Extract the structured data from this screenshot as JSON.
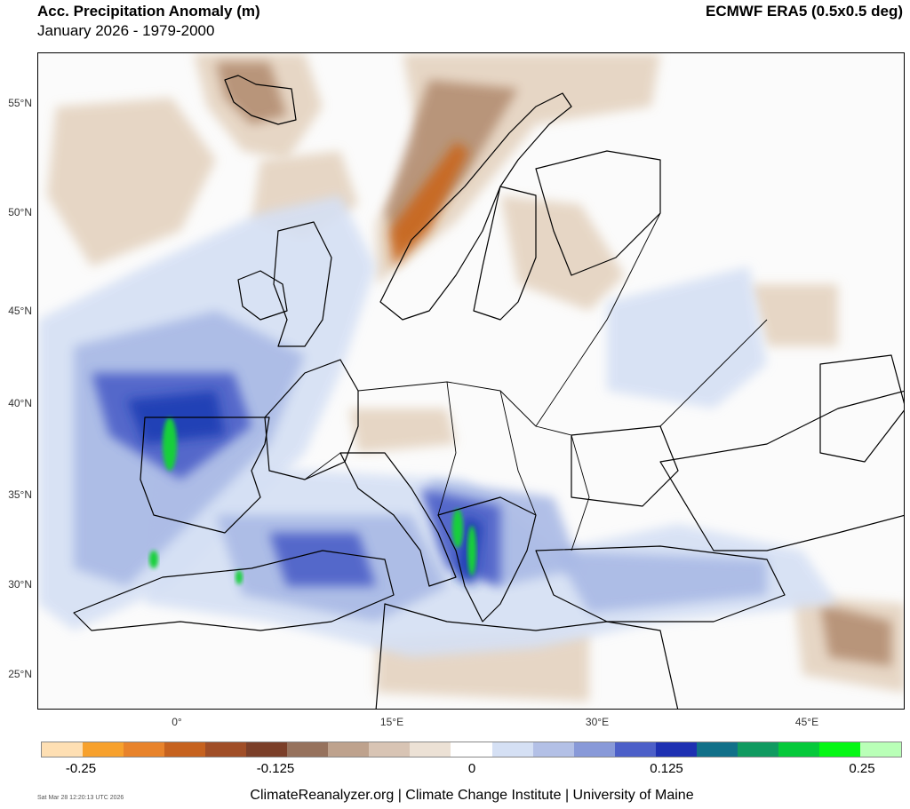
{
  "header": {
    "title": "Acc. Precipitation Anomaly (m)",
    "subtitle": "January 2026 - 1979-2000",
    "source": "ECMWF ERA5 (0.5x0.5 deg)"
  },
  "map": {
    "region": "Europe, North Africa and Middle East",
    "lat_labels": [
      "55°N",
      "50°N",
      "45°N",
      "40°N",
      "35°N",
      "30°N",
      "25°N"
    ],
    "lon_labels": [
      "0°",
      "15°E",
      "30°E",
      "45°E"
    ],
    "anomaly_palette": {
      "strong_dry": "#c9661f",
      "dry": "#b48e72",
      "slight_dry": "#e4d3c0",
      "slight_wet": "#d5e0f4",
      "wet": "#a9b9e5",
      "very_wet": "#4c5fc8",
      "extreme_wet": "#1d3cb4",
      "max_wet": "#18d03a"
    },
    "coast_color": "#000000"
  },
  "colorbar": {
    "colors": [
      "#fedfb3",
      "#f7a12d",
      "#e8832b",
      "#c6621f",
      "#a04e27",
      "#7b3f29",
      "#96725d",
      "#bea28d",
      "#d8c4b4",
      "#ece1d5",
      "#ffffff",
      "#d5e0f4",
      "#b3c0e6",
      "#8899d8",
      "#4c5fc8",
      "#1d30b2",
      "#117089",
      "#109a60",
      "#06c93a",
      "#06f715",
      "#b9ffb7"
    ],
    "labels": [
      "-0.25",
      "-0.125",
      "0",
      "0.125",
      "0.25"
    ]
  },
  "footer": {
    "timestamp": "Sat Mar 28 12:20:13 UTC 2026",
    "credit": "ClimateReanalyzer.org | Climate Change Institute | University of Maine"
  }
}
